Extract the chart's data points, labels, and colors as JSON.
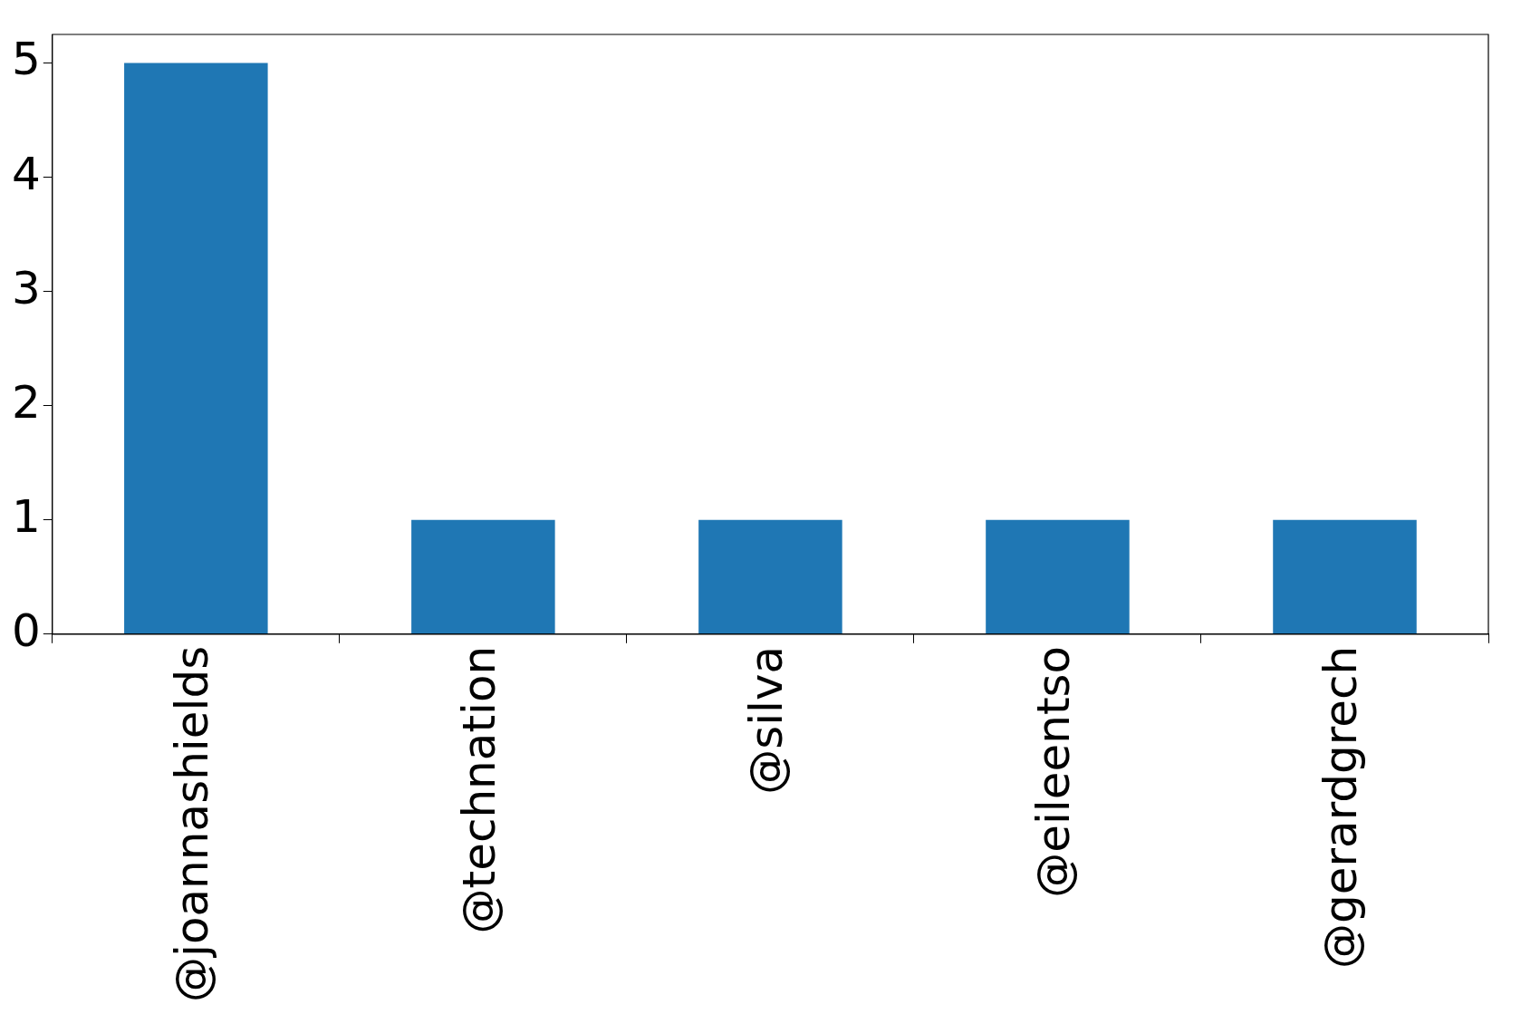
{
  "chart_data": {
    "type": "bar",
    "categories": [
      "@joannashields",
      "@technation",
      "@silva",
      "@eileentso",
      "@gerardgrech"
    ],
    "values": [
      5,
      1,
      1,
      1,
      1
    ],
    "color": "#1f77b4",
    "ylim": [
      0,
      5.25
    ],
    "yticks": [
      0,
      1,
      2,
      3,
      4,
      5
    ],
    "grid": false,
    "legend": false
  }
}
